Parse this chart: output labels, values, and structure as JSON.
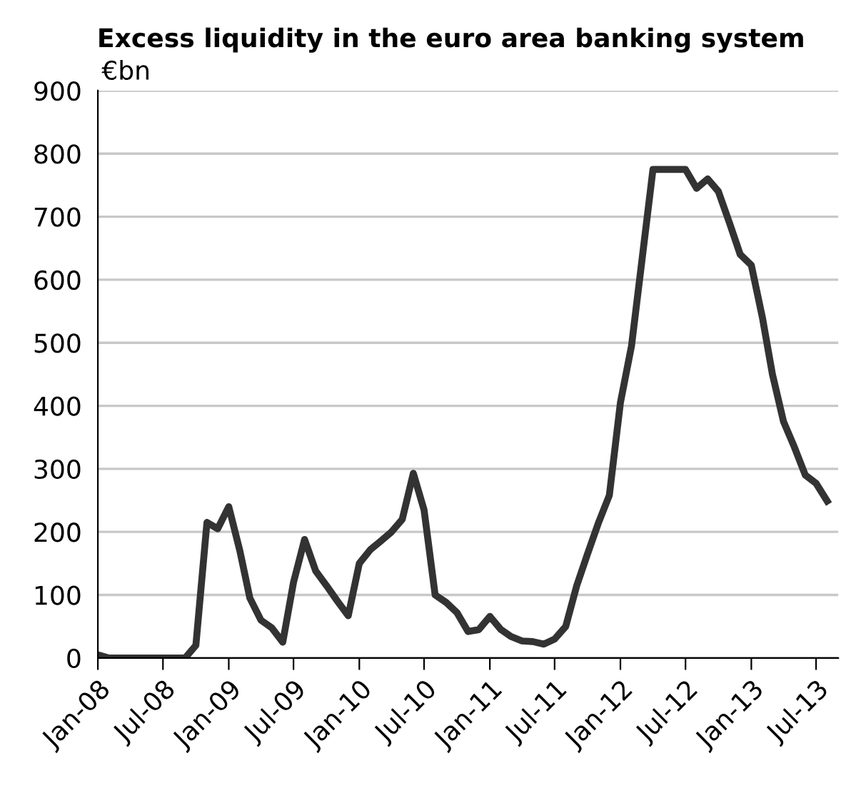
{
  "chart_data": {
    "type": "line",
    "title": "Excess liquidity in the euro area banking system",
    "ylabel": "€bn",
    "x": [
      "2008-01",
      "2008-02",
      "2008-03",
      "2008-04",
      "2008-05",
      "2008-06",
      "2008-07",
      "2008-08",
      "2008-09",
      "2008-10",
      "2008-11",
      "2008-12",
      "2009-01",
      "2009-02",
      "2009-03",
      "2009-04",
      "2009-05",
      "2009-06",
      "2009-07",
      "2009-08",
      "2009-09",
      "2009-10",
      "2009-11",
      "2009-12",
      "2010-01",
      "2010-02",
      "2010-03",
      "2010-04",
      "2010-05",
      "2010-06",
      "2010-07",
      "2010-08",
      "2010-09",
      "2010-10",
      "2010-11",
      "2010-12",
      "2011-01",
      "2011-02",
      "2011-03",
      "2011-04",
      "2011-05",
      "2011-06",
      "2011-07",
      "2011-08",
      "2011-09",
      "2011-10",
      "2011-11",
      "2011-12",
      "2012-01",
      "2012-02",
      "2012-03",
      "2012-04",
      "2012-05",
      "2012-06",
      "2012-07",
      "2012-08",
      "2012-09",
      "2012-10",
      "2012-11",
      "2012-12",
      "2013-01",
      "2013-02",
      "2013-03",
      "2013-04",
      "2013-05",
      "2013-06",
      "2013-07",
      "2013-08"
    ],
    "series": [
      {
        "color": "#333333",
        "values": [
          5,
          0,
          0,
          0,
          0,
          0,
          0,
          0,
          0,
          20,
          215,
          205,
          240,
          170,
          95,
          60,
          48,
          25,
          120,
          188,
          138,
          115,
          90,
          67,
          150,
          172,
          185,
          200,
          220,
          293,
          235,
          100,
          88,
          72,
          42,
          45,
          66,
          45,
          34,
          27,
          26,
          22,
          30,
          50,
          115,
          165,
          215,
          258,
          405,
          495,
          630,
          775,
          775,
          775,
          775,
          745,
          760,
          740,
          690,
          640,
          623,
          540,
          450,
          375,
          335,
          290,
          277,
          249
        ]
      }
    ],
    "xlim": [
      "2008-01",
      "2013-09"
    ],
    "xticks": [
      {
        "value": "2008-01",
        "label": "Jan-08"
      },
      {
        "value": "2008-07",
        "label": "Jul-08"
      },
      {
        "value": "2009-01",
        "label": "Jan-09"
      },
      {
        "value": "2009-07",
        "label": "Jul-09"
      },
      {
        "value": "2010-01",
        "label": "Jan-10"
      },
      {
        "value": "2010-07",
        "label": "Jul-10"
      },
      {
        "value": "2011-01",
        "label": "Jan-11"
      },
      {
        "value": "2011-07",
        "label": "Jul-11"
      },
      {
        "value": "2012-01",
        "label": "Jan-12"
      },
      {
        "value": "2012-07",
        "label": "Jul-12"
      },
      {
        "value": "2013-01",
        "label": "Jan-13"
      },
      {
        "value": "2013-07",
        "label": "Jul-13"
      }
    ],
    "ylim": [
      0,
      900
    ],
    "yticks": [
      0,
      100,
      200,
      300,
      400,
      500,
      600,
      700,
      800,
      900
    ],
    "grid": "y",
    "legend": false,
    "marker": "none",
    "line_style": "solid"
  }
}
